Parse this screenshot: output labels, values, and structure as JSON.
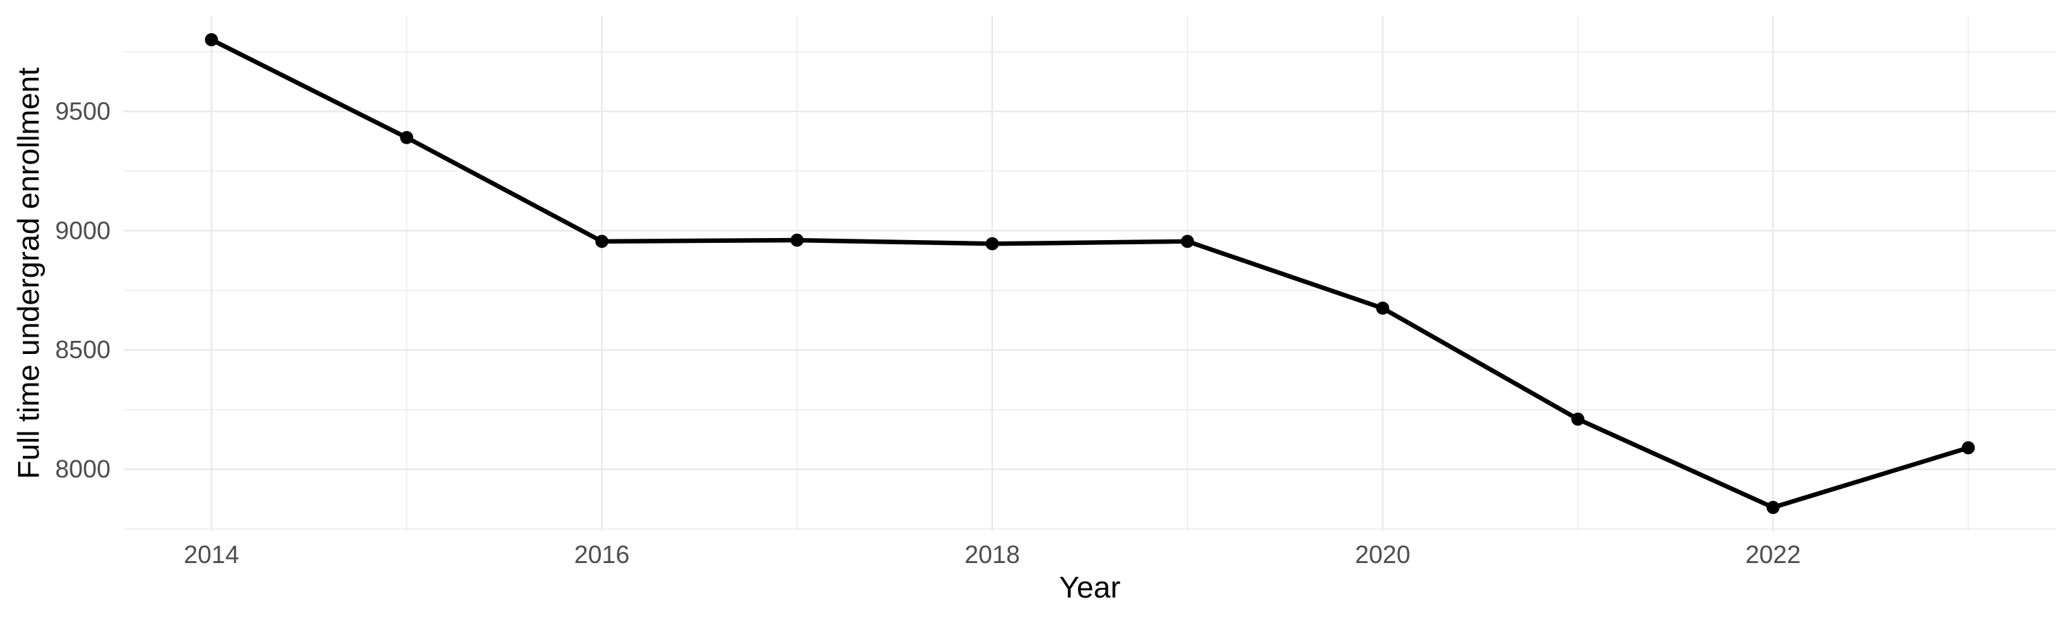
{
  "chart_data": {
    "type": "line",
    "title": "",
    "xlabel": "Year",
    "ylabel": "Full time undergrad enrollment",
    "x": [
      2014,
      2015,
      2016,
      2017,
      2018,
      2019,
      2020,
      2021,
      2022,
      2023
    ],
    "series": [
      {
        "name": "Full time undergrad enrollment",
        "values": [
          9800,
          9390,
          8955,
          8960,
          8945,
          8955,
          8675,
          8210,
          7840,
          8090
        ]
      }
    ],
    "xlim": [
      2013.55,
      2023.45
    ],
    "ylim": [
      7740,
      9900
    ],
    "x_major_ticks": [
      2014,
      2016,
      2018,
      2020,
      2022
    ],
    "x_tick_labels": [
      "2014",
      "2016",
      "2018",
      "2020",
      "2022"
    ],
    "x_minor_ticks": [
      2015,
      2017,
      2019,
      2021,
      2023
    ],
    "y_major_ticks": [
      9500,
      9000,
      8500,
      8000
    ],
    "y_tick_labels": [
      "9500",
      "9000",
      "8500",
      "8000"
    ],
    "y_minor_ticks": [
      9750,
      9250,
      8750,
      8250,
      7750
    ],
    "grid": true,
    "legend_position": "none",
    "colors": {
      "line": "#000000",
      "points": "#000000",
      "grid": "#EBEBEB",
      "tick_labels": "#4D4D4D",
      "axis_titles": "#000000",
      "background": "#FFFFFF"
    }
  }
}
